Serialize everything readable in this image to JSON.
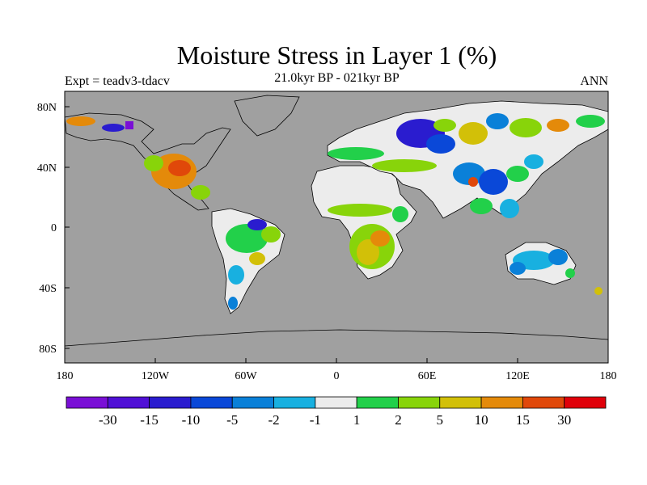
{
  "title": "Moisture Stress in Layer 1 (%)",
  "subtitle": "21.0kyr BP - 021kyr BP",
  "experiment": "Expt = teadv3-tdacv",
  "season": "ANN",
  "map": {
    "type": "filled-contour-map",
    "ocean_color": "#a0a0a0",
    "lon_range": [
      -180,
      180
    ],
    "lat_range": [
      -90,
      90
    ],
    "x_ticks": [
      "180",
      "120W",
      "60W",
      "0",
      "60E",
      "120E",
      "180"
    ],
    "y_ticks": [
      "80N",
      "40N",
      "0",
      "40S",
      "80S"
    ]
  },
  "colorbar": {
    "colors": [
      "#7a0fd6",
      "#5010d6",
      "#2a1ccf",
      "#0a48d8",
      "#0a80d8",
      "#18b0e0",
      "#ececec",
      "#22d04a",
      "#88d40a",
      "#d2c008",
      "#e48a0a",
      "#e0480a",
      "#e0000a"
    ],
    "labels": [
      "-30",
      "-15",
      "-10",
      "-5",
      "-2",
      "-1",
      "1",
      "2",
      "5",
      "10",
      "15",
      "30"
    ]
  }
}
